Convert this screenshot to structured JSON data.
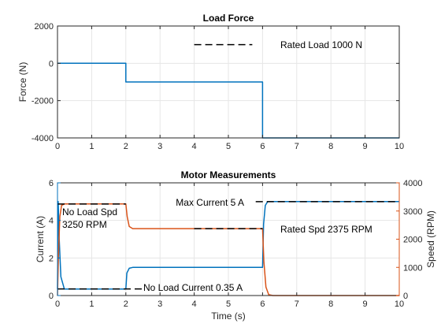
{
  "chart_data": [
    {
      "type": "line",
      "title": "Load Force",
      "xlabel": "",
      "ylabel": "Force (N)",
      "xlim": [
        0,
        10
      ],
      "ylim": [
        -4000,
        2000
      ],
      "xticks": [
        0,
        1,
        2,
        3,
        4,
        5,
        6,
        7,
        8,
        9,
        10
      ],
      "yticks": [
        -4000,
        -2000,
        0,
        2000
      ],
      "grid": true,
      "series": [
        {
          "color": "#0072BD",
          "x": [
            0,
            2,
            2,
            6,
            6,
            10
          ],
          "y": [
            0,
            0,
            -1000,
            -1000,
            -4000,
            -4000
          ]
        }
      ],
      "reference_lines": [
        {
          "label": "Rated Load 1000 N",
          "y": 1000,
          "x": [
            4,
            5.7
          ]
        }
      ]
    },
    {
      "type": "line",
      "title": "Motor Measurements",
      "xlabel": "Time (s)",
      "ylabel": "Current (A)",
      "ylabel_right": "Speed (RPM)",
      "xlim": [
        0,
        10
      ],
      "ylim": [
        0,
        6
      ],
      "ylim_right": [
        0,
        4000
      ],
      "xticks": [
        0,
        1,
        2,
        3,
        4,
        5,
        6,
        7,
        8,
        9,
        10
      ],
      "yticks": [
        0,
        2,
        4,
        6
      ],
      "yticks_right": [
        0,
        1000,
        2000,
        3000,
        4000
      ],
      "grid": true,
      "series": [
        {
          "axis": "left",
          "color": "#0072BD",
          "x": [
            0,
            0.02,
            0.05,
            0.1,
            0.2,
            2.0,
            2.03,
            2.1,
            2.2,
            6.0,
            6.03,
            6.08,
            6.15,
            6.3,
            10
          ],
          "y": [
            0.35,
            5.0,
            3.0,
            1.0,
            0.35,
            0.35,
            1.2,
            1.45,
            1.5,
            1.5,
            3.8,
            4.8,
            5.0,
            5.0,
            5.0
          ]
        },
        {
          "axis": "right",
          "color": "#D95319",
          "x": [
            0,
            0.03,
            0.07,
            0.12,
            0.2,
            2.0,
            2.04,
            2.1,
            2.2,
            6.0,
            6.04,
            6.1,
            6.18,
            6.3,
            10
          ],
          "y": [
            0,
            1500,
            2800,
            3200,
            3250,
            3250,
            2800,
            2450,
            2375,
            2375,
            1200,
            300,
            30,
            0,
            0
          ]
        }
      ],
      "reference_lines": [
        {
          "label": "No Load Spd\n3250 RPM",
          "axis": "right",
          "y": 3250,
          "x": [
            0,
            2
          ]
        },
        {
          "label": "Max Current 5 A",
          "axis": "left",
          "y": 5,
          "x": [
            5.8,
            10
          ]
        },
        {
          "label": "Rated Spd 2375 RPM",
          "axis": "right",
          "y": 2375,
          "x": [
            4,
            6.0
          ]
        },
        {
          "label": "No Load Current 0.35 A",
          "axis": "left",
          "y": 0.35,
          "x": [
            0,
            2.5
          ]
        }
      ]
    }
  ]
}
